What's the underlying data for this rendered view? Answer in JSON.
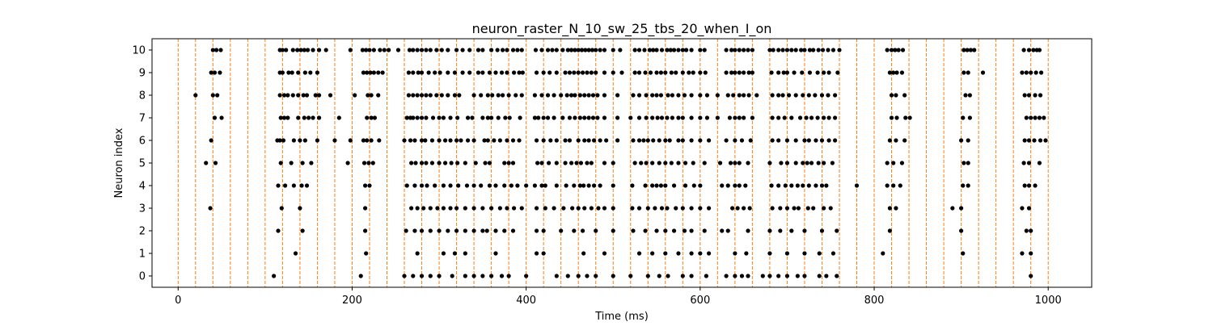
{
  "chart_data": {
    "type": "scatter",
    "title": "neuron_raster_N_10_sw_25_tbs_20_when_I_on",
    "xlabel": "Time (ms)",
    "ylabel": "Neuron index",
    "xlim": [
      -30,
      1050
    ],
    "ylim": [
      -0.5,
      10.5
    ],
    "xticks": [
      0,
      200,
      400,
      600,
      800,
      1000
    ],
    "yticks": [
      0,
      1,
      2,
      3,
      4,
      5,
      6,
      7,
      8,
      9,
      10
    ],
    "grid": false,
    "legend": "none",
    "marker_color": "#000000",
    "vline_color": "#ff7f0e",
    "vlines": [
      0,
      20,
      40,
      60,
      80,
      100,
      120,
      140,
      160,
      180,
      200,
      220,
      240,
      260,
      280,
      300,
      320,
      340,
      360,
      380,
      400,
      420,
      440,
      460,
      480,
      500,
      520,
      540,
      560,
      580,
      600,
      620,
      640,
      660,
      680,
      700,
      720,
      740,
      760,
      780,
      800,
      820,
      840,
      860,
      880,
      900,
      920,
      940,
      960,
      980,
      1000
    ],
    "spikes": [
      {
        "neuron": 10,
        "times": [
          40,
          44,
          49,
          117,
          120,
          124,
          132,
          137,
          141,
          145,
          149,
          155,
          162,
          170,
          198,
          212,
          216,
          220,
          225,
          232,
          237,
          242,
          253,
          266,
          270,
          275,
          280,
          285,
          290,
          297,
          303,
          310,
          320,
          327,
          335,
          345,
          350,
          360,
          367,
          373,
          378,
          385,
          390,
          395,
          411,
          418,
          425,
          430,
          435,
          442,
          448,
          452,
          456,
          460,
          464,
          468,
          472,
          476,
          480,
          485,
          490,
          500,
          508,
          525,
          530,
          536,
          542,
          546,
          550,
          556,
          562,
          566,
          570,
          575,
          580,
          584,
          590,
          600,
          605,
          630,
          636,
          640,
          645,
          650,
          655,
          660,
          680,
          684,
          690,
          695,
          700,
          705,
          710,
          716,
          720,
          726,
          730,
          736,
          741,
          747,
          753,
          760,
          815,
          820,
          824,
          828,
          833,
          903,
          907,
          911,
          915,
          972,
          978,
          983,
          987,
          990
        ]
      },
      {
        "neuron": 9,
        "times": [
          38,
          42,
          48,
          117,
          120,
          127,
          131,
          138,
          146,
          152,
          160,
          213,
          217,
          221,
          225,
          230,
          235,
          265,
          270,
          276,
          280,
          288,
          295,
          301,
          310,
          318,
          327,
          335,
          345,
          350,
          358,
          365,
          372,
          378,
          386,
          392,
          396,
          412,
          420,
          427,
          435,
          445,
          450,
          455,
          460,
          465,
          470,
          475,
          480,
          490,
          500,
          510,
          525,
          530,
          537,
          543,
          550,
          555,
          560,
          567,
          572,
          580,
          587,
          592,
          600,
          606,
          630,
          636,
          640,
          645,
          650,
          656,
          660,
          682,
          690,
          696,
          700,
          708,
          717,
          726,
          735,
          742,
          748,
          758,
          818,
          822,
          826,
          832,
          903,
          908,
          925,
          970,
          975,
          980,
          986,
          992
        ]
      },
      {
        "neuron": 8,
        "times": [
          20,
          40,
          45,
          117,
          122,
          126,
          132,
          138,
          144,
          148,
          158,
          162,
          175,
          203,
          218,
          222,
          230,
          265,
          270,
          275,
          280,
          285,
          290,
          297,
          303,
          310,
          318,
          323,
          340,
          348,
          356,
          361,
          368,
          373,
          380,
          388,
          395,
          410,
          418,
          425,
          432,
          440,
          447,
          452,
          456,
          462,
          467,
          472,
          477,
          482,
          490,
          505,
          523,
          530,
          538,
          545,
          550,
          555,
          563,
          568,
          575,
          582,
          590,
          600,
          608,
          620,
          632,
          638,
          645,
          650,
          656,
          665,
          683,
          690,
          695,
          702,
          710,
          718,
          725,
          732,
          740,
          747,
          755,
          820,
          825,
          835,
          905,
          910,
          973,
          978,
          985,
          991
        ]
      },
      {
        "neuron": 7,
        "times": [
          42,
          50,
          118,
          122,
          126,
          138,
          145,
          150,
          155,
          162,
          185,
          217,
          222,
          226,
          263,
          267,
          270,
          275,
          280,
          285,
          293,
          300,
          305,
          313,
          321,
          333,
          338,
          350,
          356,
          360,
          368,
          376,
          381,
          393,
          410,
          414,
          420,
          425,
          432,
          442,
          450,
          456,
          462,
          467,
          472,
          477,
          482,
          490,
          505,
          520,
          530,
          538,
          545,
          551,
          556,
          562,
          568,
          575,
          580,
          590,
          600,
          608,
          620,
          634,
          640,
          645,
          650,
          660,
          683,
          690,
          697,
          705,
          715,
          722,
          728,
          735,
          742,
          748,
          755,
          820,
          826,
          836,
          841,
          902,
          910,
          975,
          980,
          985,
          990,
          995
        ]
      },
      {
        "neuron": 6,
        "times": [
          38,
          114,
          117,
          121,
          133,
          140,
          146,
          160,
          180,
          198,
          213,
          217,
          222,
          231,
          260,
          267,
          272,
          280,
          284,
          292,
          300,
          307,
          313,
          320,
          325,
          333,
          340,
          352,
          356,
          363,
          370,
          378,
          385,
          392,
          412,
          420,
          428,
          435,
          445,
          450,
          460,
          467,
          472,
          478,
          485,
          492,
          505,
          523,
          530,
          535,
          540,
          546,
          553,
          560,
          565,
          575,
          580,
          590,
          600,
          610,
          630,
          640,
          648,
          658,
          683,
          690,
          700,
          710,
          720,
          725,
          733,
          740,
          748,
          755,
          818,
          825,
          835,
          900,
          908,
          973,
          978,
          984,
          991,
          997
        ]
      },
      {
        "neuron": 5,
        "times": [
          32,
          43,
          118,
          130,
          143,
          153,
          195,
          214,
          219,
          224,
          268,
          273,
          280,
          285,
          292,
          300,
          307,
          314,
          321,
          330,
          342,
          353,
          358,
          375,
          380,
          385,
          413,
          418,
          426,
          435,
          445,
          452,
          458,
          463,
          470,
          475,
          490,
          500,
          525,
          532,
          538,
          545,
          553,
          560,
          567,
          575,
          583,
          592,
          605,
          623,
          635,
          640,
          645,
          655,
          680,
          693,
          700,
          710,
          718,
          723,
          728,
          736,
          742,
          752,
          815,
          822,
          832,
          903,
          908,
          972,
          978,
          990
        ]
      },
      {
        "neuron": 4,
        "times": [
          115,
          123,
          133,
          142,
          148,
          215,
          220,
          263,
          272,
          280,
          286,
          295,
          305,
          313,
          322,
          332,
          340,
          348,
          358,
          365,
          375,
          383,
          390,
          400,
          410,
          418,
          422,
          435,
          446,
          455,
          462,
          466,
          472,
          478,
          485,
          500,
          522,
          537,
          545,
          550,
          555,
          560,
          570,
          583,
          593,
          600,
          625,
          632,
          640,
          645,
          652,
          682,
          690,
          698,
          705,
          712,
          718,
          725,
          733,
          740,
          745,
          780,
          815,
          822,
          830,
          902,
          908,
          973,
          978,
          985
        ]
      },
      {
        "neuron": 3,
        "times": [
          37,
          119,
          140,
          215,
          268,
          275,
          282,
          290,
          298,
          305,
          313,
          320,
          330,
          340,
          350,
          360,
          370,
          378,
          386,
          395,
          412,
          422,
          432,
          443,
          453,
          460,
          467,
          475,
          483,
          490,
          500,
          522,
          530,
          540,
          548,
          556,
          562,
          572,
          580,
          590,
          600,
          610,
          637,
          643,
          650,
          657,
          683,
          692,
          700,
          708,
          713,
          724,
          730,
          742,
          750,
          818,
          825,
          890,
          900,
          970,
          978
        ]
      },
      {
        "neuron": 2,
        "times": [
          115,
          143,
          215,
          262,
          272,
          280,
          290,
          300,
          310,
          320,
          330,
          340,
          350,
          355,
          365,
          375,
          385,
          412,
          420,
          440,
          455,
          465,
          480,
          500,
          523,
          537,
          550,
          560,
          570,
          582,
          590,
          605,
          625,
          632,
          655,
          680,
          692,
          705,
          720,
          740,
          757,
          818,
          900,
          975,
          980
        ]
      },
      {
        "neuron": 1,
        "times": [
          135,
          216,
          275,
          305,
          318,
          330,
          365,
          412,
          420,
          466,
          490,
          530,
          545,
          560,
          575,
          590,
          600,
          610,
          640,
          653,
          680,
          700,
          720,
          737,
          753,
          810,
          902,
          970,
          980
        ]
      },
      {
        "neuron": 0,
        "times": [
          110,
          210,
          260,
          270,
          280,
          290,
          300,
          315,
          330,
          340,
          350,
          360,
          372,
          380,
          400,
          435,
          448,
          460,
          470,
          480,
          500,
          520,
          540,
          553,
          563,
          580,
          590,
          607,
          630,
          640,
          648,
          655,
          672,
          680,
          690,
          700,
          712,
          720,
          737,
          745,
          757,
          980
        ]
      }
    ]
  }
}
